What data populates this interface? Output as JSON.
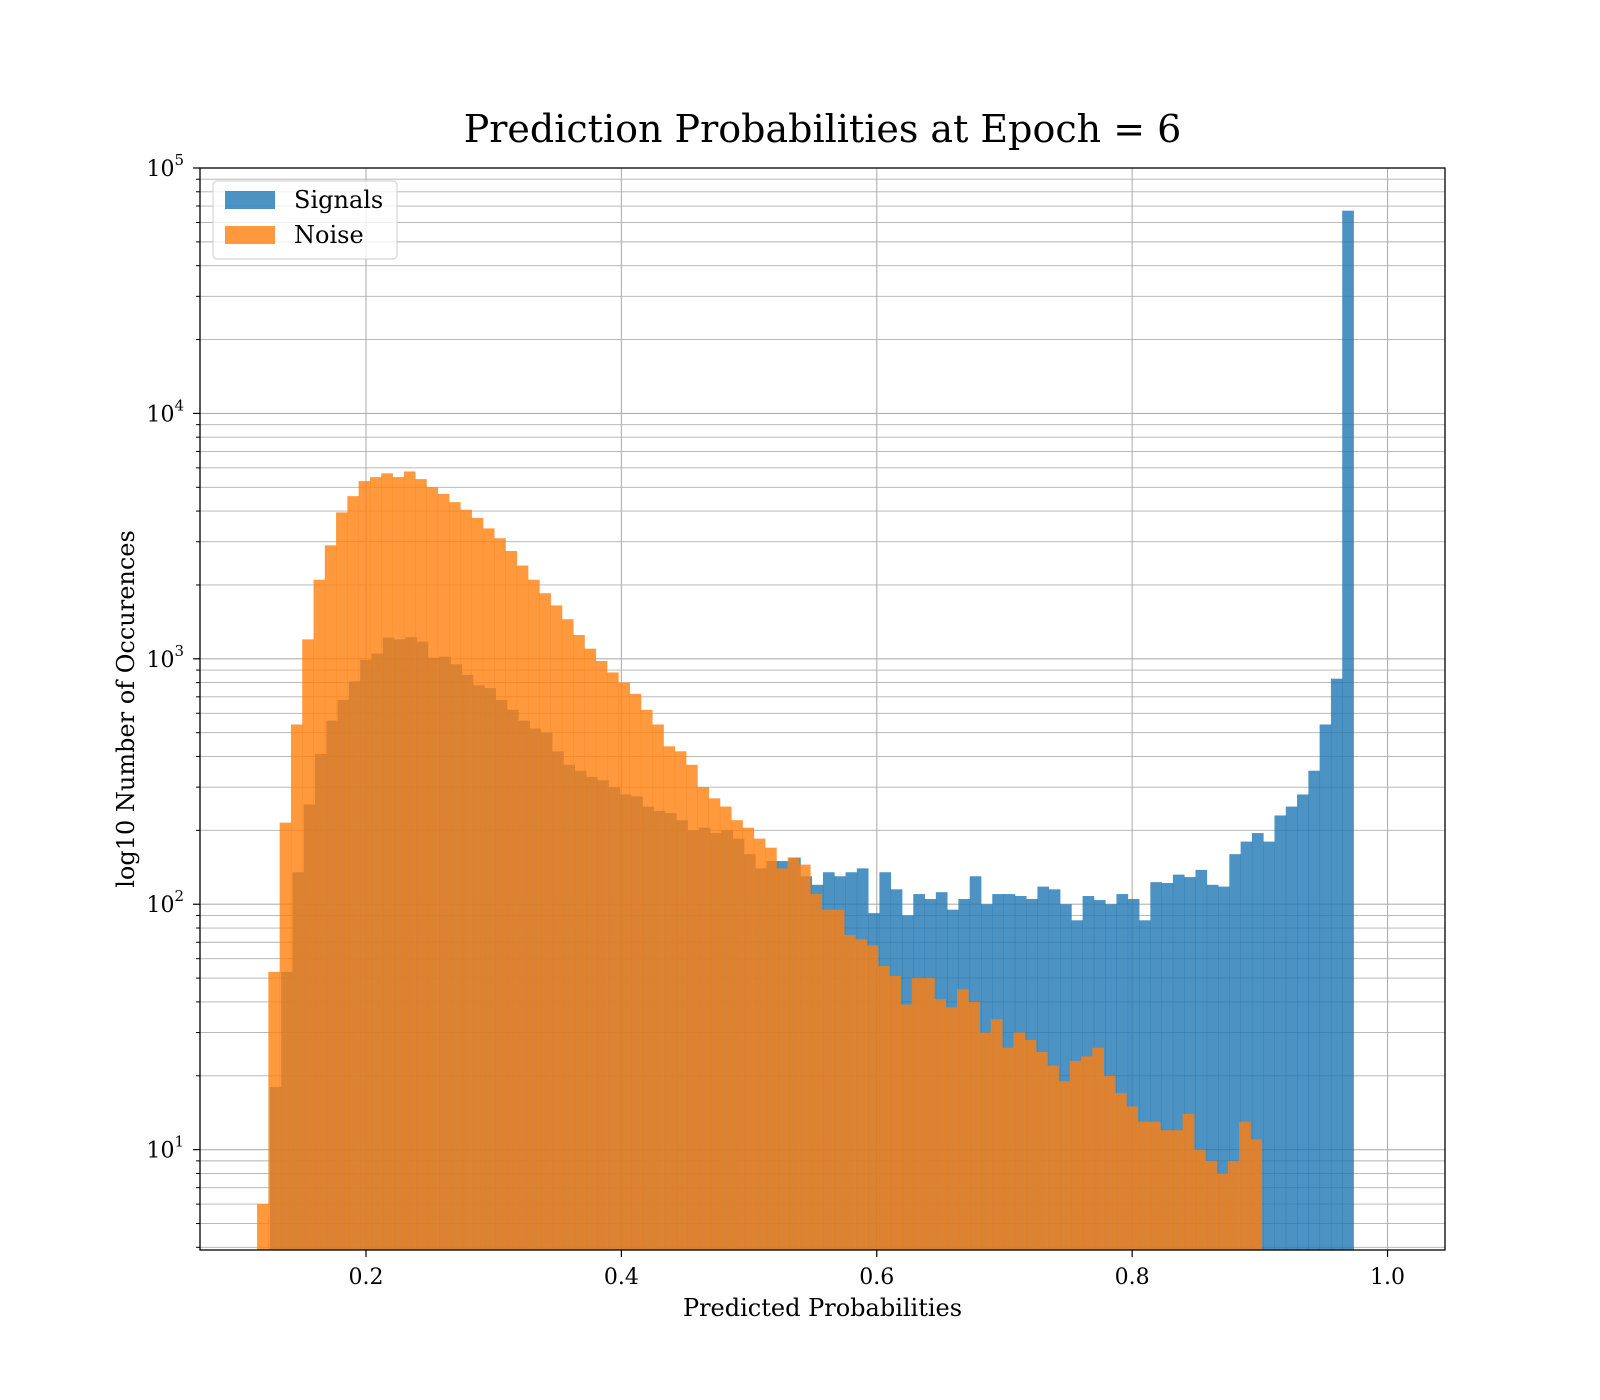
{
  "chart_data": {
    "type": "histogram",
    "title": "Prediction Probabilities at Epoch = 6",
    "xlabel": "Predicted Probabilities",
    "ylabel": "log10 Number of Occurences",
    "xlim": [
      0.07,
      1.045
    ],
    "ylim": [
      3.9,
      100000
    ],
    "yscale": "log",
    "grid": true,
    "grid_minor_y": true,
    "legend_position": "top-left",
    "xticks": [
      {
        "value": 0.2,
        "label": "0.2"
      },
      {
        "value": 0.4,
        "label": "0.4"
      },
      {
        "value": 0.6,
        "label": "0.6"
      },
      {
        "value": 0.8,
        "label": "0.8"
      },
      {
        "value": 1.0,
        "label": "1.0"
      }
    ],
    "yticks": [
      {
        "value": 10,
        "base": "10",
        "exp": "1"
      },
      {
        "value": 100,
        "base": "10",
        "exp": "2"
      },
      {
        "value": 1000,
        "base": "10",
        "exp": "3"
      },
      {
        "value": 10000,
        "base": "10",
        "exp": "4"
      },
      {
        "value": 100000,
        "base": "10",
        "exp": "5"
      }
    ],
    "series": [
      {
        "name": "Signals",
        "color": "#1f77b4",
        "alpha": 0.8,
        "x_start": 0.1247,
        "bin_width": 0.00884,
        "values": [
          18,
          53,
          135,
          255,
          410,
          560,
          680,
          810,
          990,
          1050,
          1220,
          1200,
          1225,
          1175,
          1010,
          1020,
          950,
          860,
          780,
          760,
          680,
          620,
          560,
          520,
          500,
          420,
          370,
          350,
          330,
          320,
          300,
          280,
          275,
          250,
          240,
          235,
          220,
          200,
          205,
          195,
          200,
          185,
          160,
          140,
          150,
          150,
          155,
          130,
          120,
          135,
          130,
          135,
          140,
          92,
          135,
          115,
          90,
          110,
          105,
          112,
          95,
          105,
          130,
          100,
          110,
          110,
          108,
          105,
          118,
          115,
          100,
          86,
          108,
          104,
          100,
          110,
          105,
          86,
          123,
          122,
          132,
          129,
          138,
          120,
          118,
          160,
          180,
          195,
          180,
          230,
          250,
          280,
          350,
          540,
          830,
          67000
        ]
      },
      {
        "name": "Noise",
        "color": "#ff7f0e",
        "alpha": 0.8,
        "x_start": 0.1147,
        "bin_width": 0.00884,
        "values": [
          6,
          53,
          215,
          540,
          1200,
          2100,
          2900,
          3950,
          4600,
          5300,
          5500,
          5700,
          5500,
          5800,
          5400,
          5000,
          4700,
          4350,
          4050,
          3750,
          3400,
          3100,
          2750,
          2400,
          2100,
          1850,
          1650,
          1450,
          1250,
          1100,
          980,
          880,
          800,
          720,
          620,
          540,
          440,
          420,
          370,
          300,
          270,
          250,
          220,
          205,
          185,
          170,
          140,
          155,
          145,
          110,
          95,
          95,
          75,
          72,
          68,
          56,
          51,
          39,
          50,
          50,
          41,
          38,
          45,
          40,
          30,
          34,
          26,
          30,
          28,
          25,
          22,
          19,
          23,
          24,
          26,
          20,
          17,
          15,
          13,
          13,
          12,
          12,
          14,
          10,
          9,
          8,
          9,
          13,
          11
        ]
      }
    ]
  }
}
